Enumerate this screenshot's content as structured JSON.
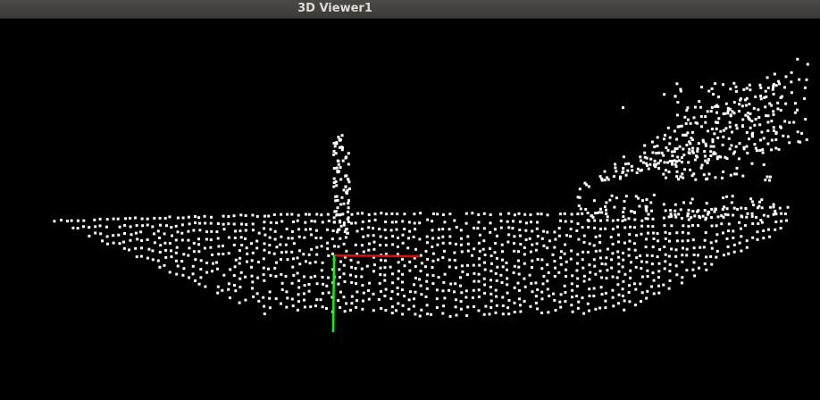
{
  "window": {
    "title": "3D Viewer1"
  },
  "viewport": {
    "background": "#000000",
    "point_color": "#ffffff",
    "axes": {
      "x_color": "#ff0000",
      "y_color": "#00ff00"
    }
  }
}
